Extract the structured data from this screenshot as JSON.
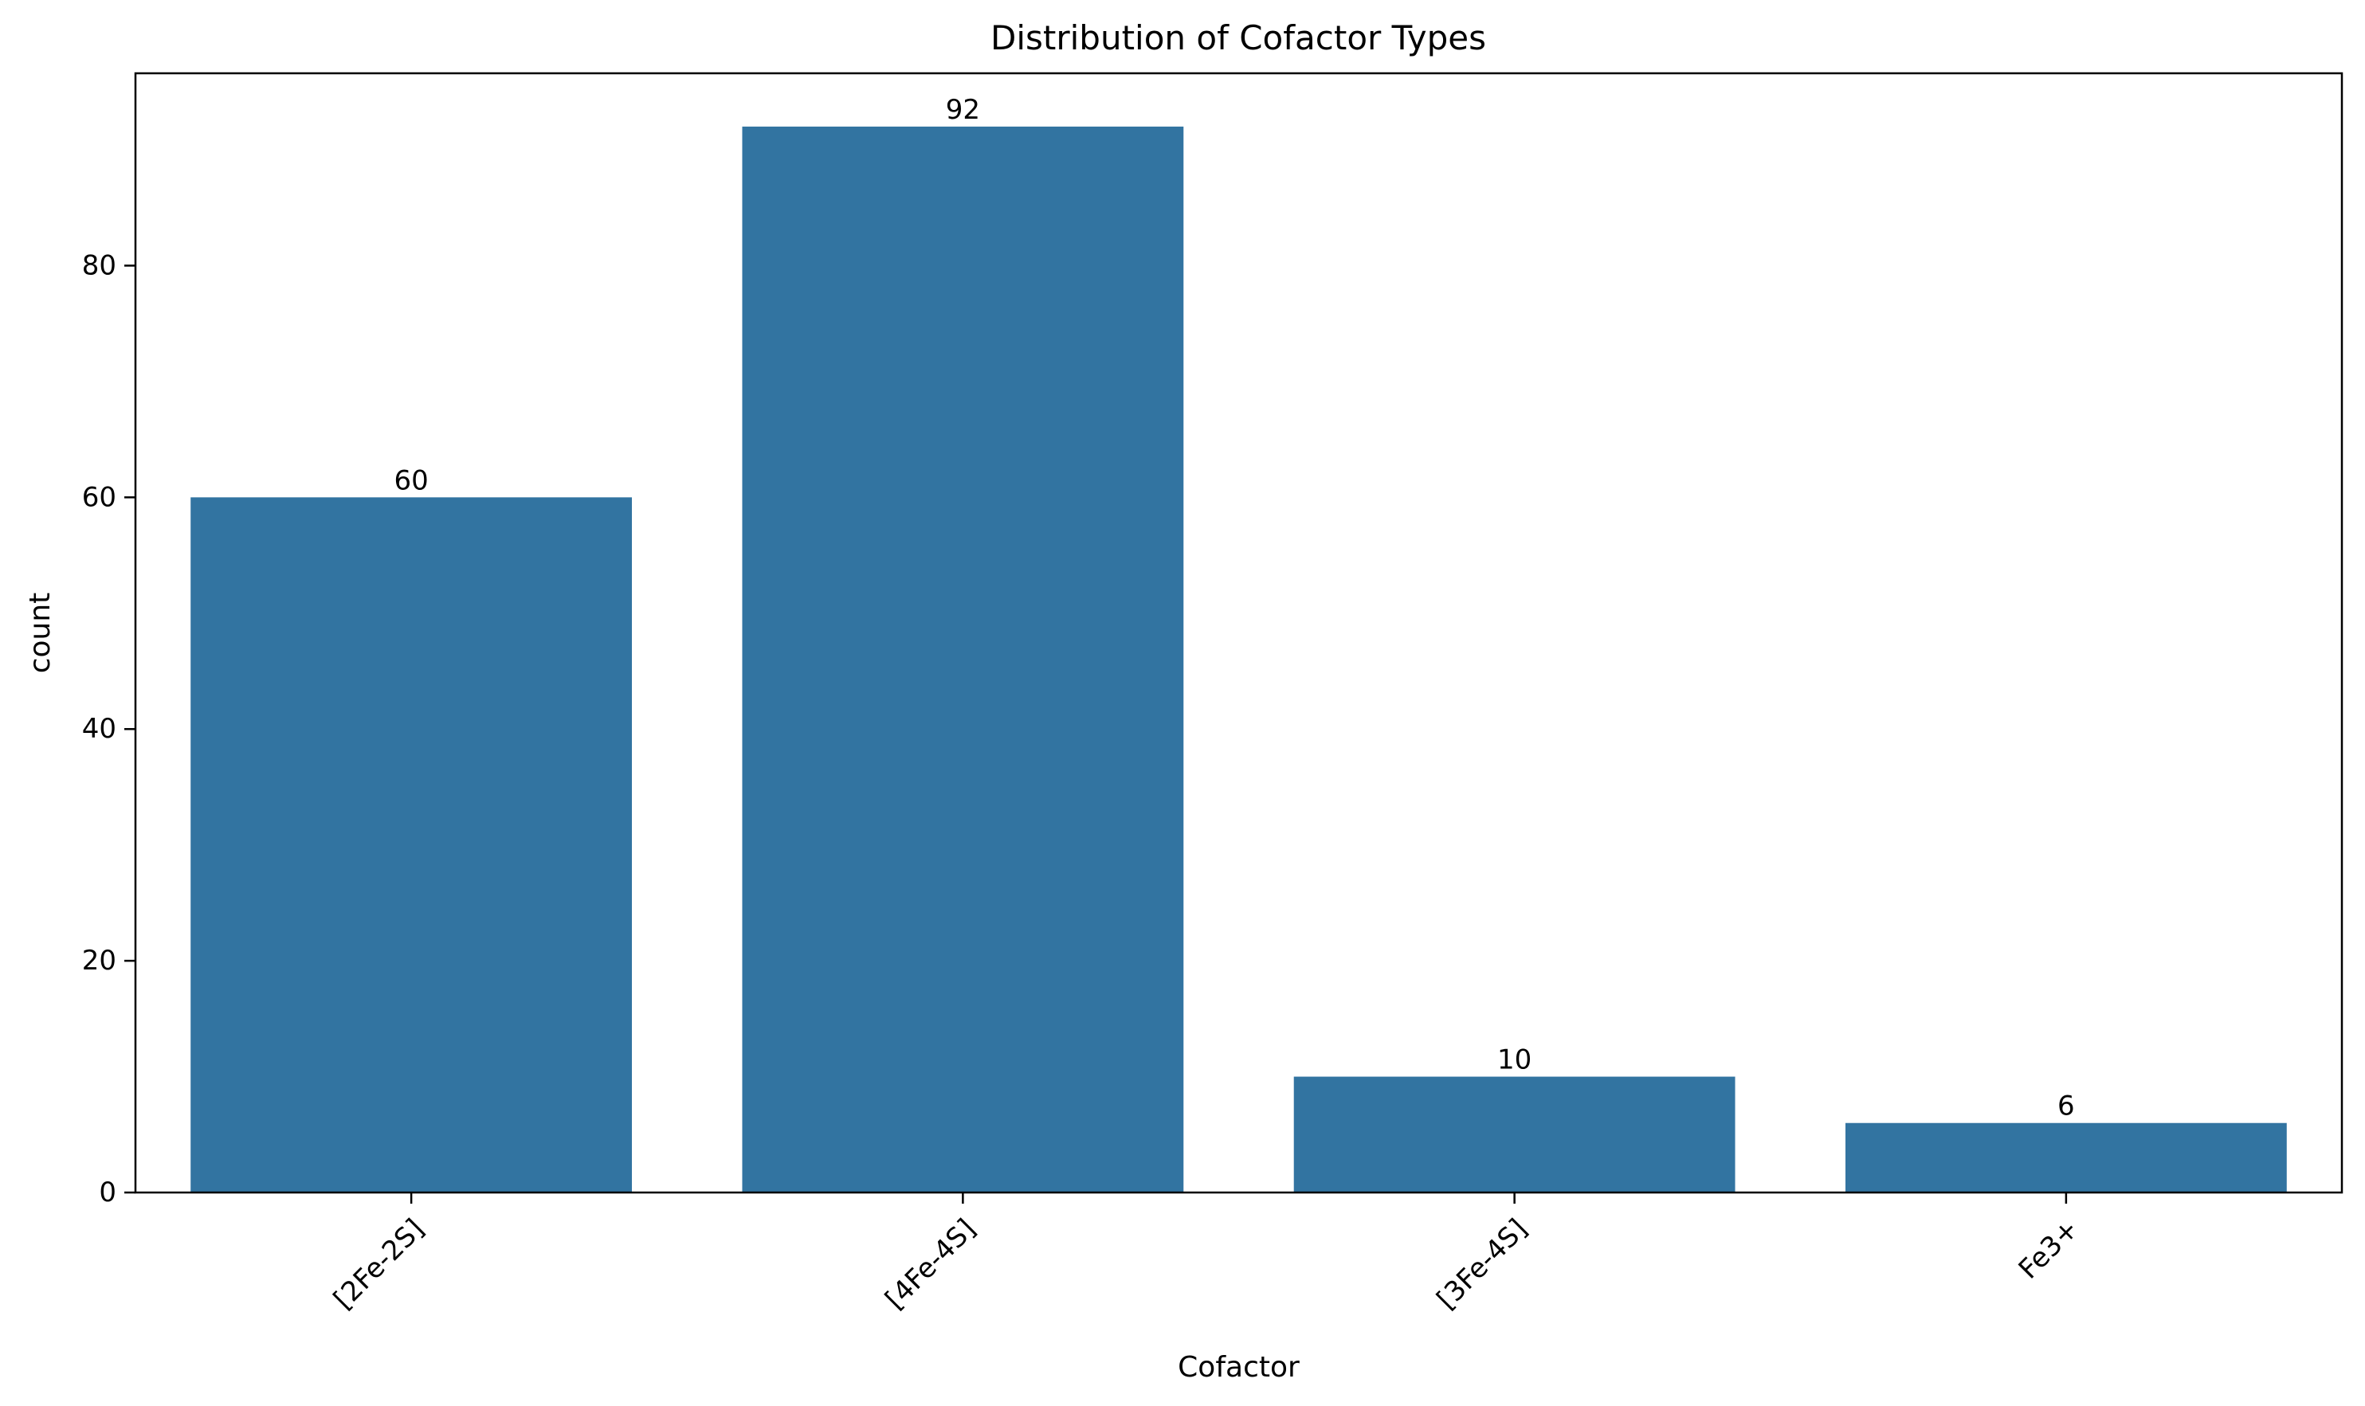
{
  "chart_data": {
    "type": "bar",
    "title": "Distribution of Cofactor Types",
    "xlabel": "Cofactor",
    "ylabel": "count",
    "categories": [
      "[2Fe-2S]",
      "[4Fe-4S]",
      "[3Fe-4S]",
      "Fe3+"
    ],
    "values": [
      60,
      92,
      10,
      6
    ],
    "data_labels": [
      "60",
      "92",
      "10",
      "6"
    ],
    "yticks": [
      0,
      20,
      40,
      60,
      80
    ],
    "ytick_labels": [
      "0",
      "20",
      "40",
      "60",
      "80"
    ],
    "ylim": [
      0,
      96.6
    ],
    "grid": false,
    "legend": "none",
    "x_tick_rotation_deg": 45,
    "bar_color": "#3274a1"
  }
}
